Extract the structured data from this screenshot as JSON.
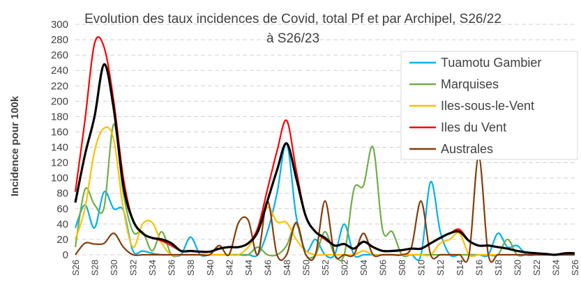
{
  "chart_data": {
    "type": "line",
    "title": "Evolution des taux incidences de Covid, total  Pf et par Archipel, S26/22 à S26/23",
    "y_label": "Incidence pour 100k",
    "categories": [
      "S26",
      null,
      "S28",
      null,
      "S30",
      null,
      "S32",
      null,
      "S34",
      null,
      "S36",
      null,
      "S38",
      null,
      "S40",
      null,
      "S42",
      null,
      "S44",
      null,
      "S46",
      null,
      "S48",
      null,
      "S50",
      null,
      "S52",
      null,
      "S02",
      null,
      "S04",
      null,
      "S06",
      null,
      "S08",
      null,
      "S10",
      null,
      "S12",
      null,
      "S14",
      null,
      "S16",
      null,
      "S18",
      null,
      "S20",
      null,
      "S22",
      null,
      "S24",
      null,
      "S26"
    ],
    "ylim": [
      0,
      300
    ],
    "yticks": [
      0,
      20,
      40,
      60,
      80,
      100,
      120,
      140,
      160,
      180,
      200,
      220,
      240,
      260,
      280,
      300
    ],
    "grid": true,
    "legend": "upper right",
    "smooth": true,
    "series": [
      {
        "name": "Tuamotu Gambier",
        "color": "#00b0f0",
        "width": 2.2,
        "values": [
          35,
          65,
          35,
          82,
          60,
          58,
          5,
          5,
          2,
          0,
          0,
          0,
          23,
          0,
          0,
          0,
          0,
          0,
          0,
          0,
          30,
          80,
          145,
          50,
          5,
          20,
          0,
          0,
          40,
          0,
          0,
          0,
          0,
          0,
          0,
          0,
          0,
          95,
          30,
          0,
          0,
          0,
          0,
          0,
          28,
          10,
          12,
          0,
          0,
          0,
          0,
          0,
          0
        ]
      },
      {
        "name": "Marquises",
        "color": "#70ad47",
        "width": 2.2,
        "values": [
          10,
          85,
          65,
          62,
          170,
          80,
          30,
          30,
          5,
          30,
          0,
          0,
          0,
          0,
          0,
          0,
          0,
          0,
          0,
          10,
          0,
          0,
          12,
          40,
          0,
          0,
          30,
          0,
          0,
          85,
          90,
          140,
          32,
          30,
          0,
          0,
          0,
          0,
          0,
          0,
          0,
          0,
          0,
          0,
          0,
          20,
          0,
          0,
          0,
          0,
          0,
          0,
          0
        ]
      },
      {
        "name": "Iles-sous-le-Vent",
        "color": "#ffc000",
        "width": 2.2,
        "values": [
          20,
          60,
          135,
          165,
          150,
          60,
          10,
          40,
          42,
          15,
          0,
          0,
          0,
          0,
          0,
          0,
          0,
          0,
          10,
          30,
          62,
          43,
          42,
          20,
          5,
          0,
          0,
          0,
          0,
          0,
          5,
          0,
          0,
          0,
          0,
          0,
          0,
          0,
          15,
          20,
          28,
          0,
          0,
          0,
          0,
          0,
          0,
          0,
          0,
          0,
          0,
          0,
          0
        ]
      },
      {
        "name": "Iles du Vent",
        "color": "#ff0000",
        "width": 2.2,
        "values": [
          82,
          175,
          275,
          270,
          200,
          100,
          45,
          28,
          22,
          18,
          12,
          5,
          5,
          4,
          4,
          8,
          10,
          10,
          15,
          35,
          85,
          135,
          175,
          110,
          50,
          30,
          20,
          12,
          14,
          8,
          17,
          10,
          5,
          5,
          6,
          8,
          8,
          15,
          22,
          28,
          33,
          18,
          12,
          12,
          10,
          8,
          5,
          3,
          2,
          1,
          0,
          2,
          2
        ]
      },
      {
        "name": "Australes",
        "color": "#843c0c",
        "width": 2.2,
        "values": [
          0,
          15,
          14,
          15,
          28,
          10,
          0,
          0,
          0,
          0,
          0,
          0,
          0,
          0,
          0,
          12,
          0,
          42,
          45,
          0,
          70,
          0,
          0,
          42,
          0,
          0,
          70,
          0,
          0,
          0,
          28,
          0,
          0,
          0,
          0,
          10,
          70,
          0,
          0,
          0,
          0,
          0,
          128,
          0,
          0,
          0,
          0,
          0,
          0,
          0,
          0,
          0,
          0
        ]
      },
      {
        "color": "#000000",
        "width": 3.2,
        "values": [
          68,
          130,
          180,
          248,
          190,
          90,
          45,
          28,
          22,
          20,
          15,
          5,
          5,
          4,
          4,
          8,
          10,
          10,
          15,
          30,
          70,
          110,
          145,
          100,
          50,
          30,
          22,
          12,
          14,
          8,
          17,
          10,
          5,
          5,
          6,
          8,
          8,
          15,
          22,
          28,
          30,
          18,
          12,
          12,
          10,
          8,
          5,
          3,
          2,
          1,
          0,
          2,
          2
        ]
      }
    ]
  }
}
